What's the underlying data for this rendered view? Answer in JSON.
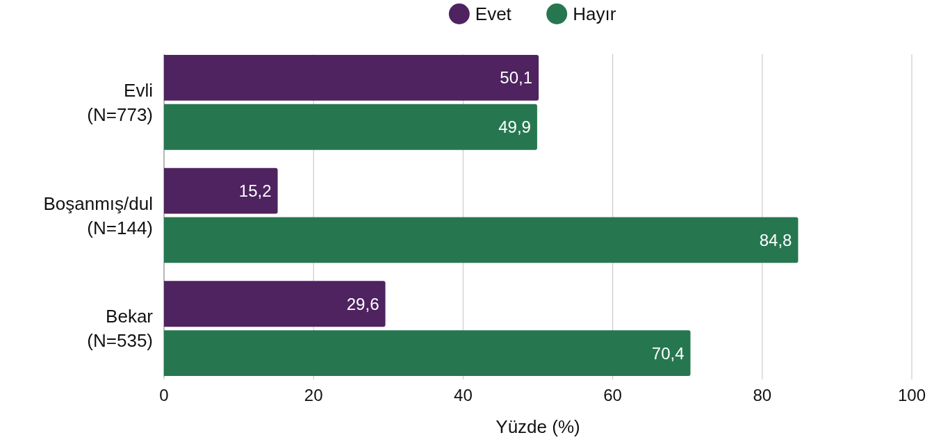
{
  "chart_data": {
    "type": "bar",
    "orientation": "horizontal",
    "categories": [
      "Evli\n(N=773)",
      "Boşanmış/dul\n(N=144)",
      "Bekar\n(N=535)"
    ],
    "series": [
      {
        "name": "Evet",
        "color": "#4e2360",
        "values": [
          50.1,
          15.2,
          29.6
        ],
        "value_labels": [
          "50,1",
          "15,2",
          "29,6"
        ]
      },
      {
        "name": "Hayır",
        "color": "#267750",
        "values": [
          49.9,
          84.8,
          70.4
        ],
        "value_labels": [
          "49,9",
          "84,8",
          "70,4"
        ]
      }
    ],
    "xlabel": "Yüzde (%)",
    "xlim": [
      0,
      100
    ],
    "xticks": [
      0,
      20,
      40,
      60,
      80,
      100
    ],
    "grid": "x",
    "legend": "top"
  }
}
